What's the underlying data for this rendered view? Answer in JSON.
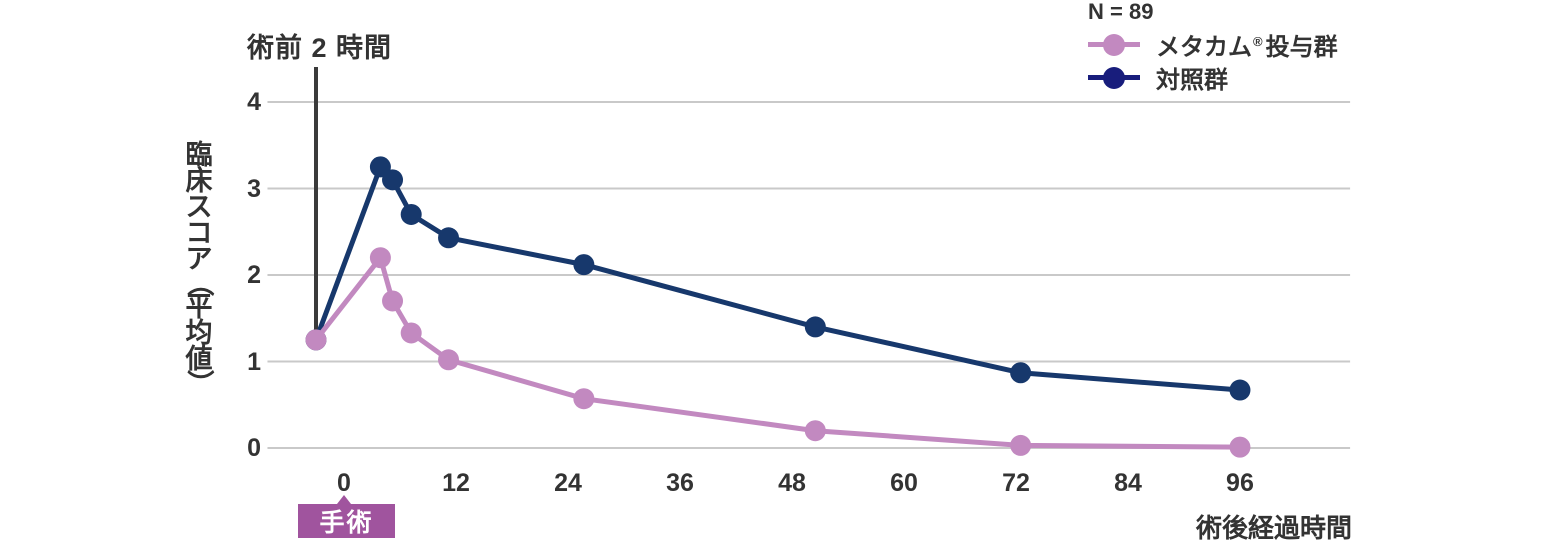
{
  "figure": {
    "preop_annotation": "術前 2 時間",
    "surgery_badge_label": "手術",
    "x_axis_title": "術後経過時間",
    "y_axis_title": "臨床スコア（平均値）"
  },
  "legend": {
    "n_label": "N = 89",
    "items": [
      {
        "name": "metacam",
        "label_prefix": "メタカム",
        "label_reg": "®",
        "label_suffix": "投与群",
        "line_color": "#c289c0",
        "dot_color": "#c289c0"
      },
      {
        "name": "control",
        "label": "対照群",
        "line_color": "#181d7c",
        "dot_color": "#181d7c"
      }
    ]
  },
  "chart_data": {
    "type": "line",
    "title": "術前 2 時間",
    "xlabel": "術後経過時間",
    "ylabel": "臨床スコア（平均値）",
    "n_label": "N = 89",
    "x_ticks": [
      0,
      12,
      24,
      36,
      48,
      60,
      72,
      84,
      96
    ],
    "y_ticks": [
      4,
      3,
      2,
      1,
      0
    ],
    "xlim": [
      -8.2,
      107.8
    ],
    "ylim": [
      0,
      4.35
    ],
    "grid": true,
    "legend_position": "top-right",
    "preop_line_x": -3,
    "surgery_x": 0,
    "x_hours": [
      -3,
      3.9,
      5.2,
      7.2,
      11.2,
      25.7,
      50.5,
      72.5,
      96
    ],
    "series": [
      {
        "name": "メタカム®投与群",
        "color": "#c289c0",
        "values": [
          1.25,
          2.2,
          1.7,
          1.33,
          1.02,
          0.57,
          0.2,
          0.03,
          0.01
        ]
      },
      {
        "name": "対照群",
        "color": "#17386c",
        "values": [
          1.25,
          3.25,
          3.1,
          2.7,
          2.43,
          2.12,
          1.4,
          0.87,
          0.67
        ]
      }
    ]
  },
  "colors": {
    "grid": "#c9c9c9",
    "text": "#333333",
    "preop_line": "#3a3a3a",
    "badge": "#a0549e",
    "background": "#ffffff"
  }
}
